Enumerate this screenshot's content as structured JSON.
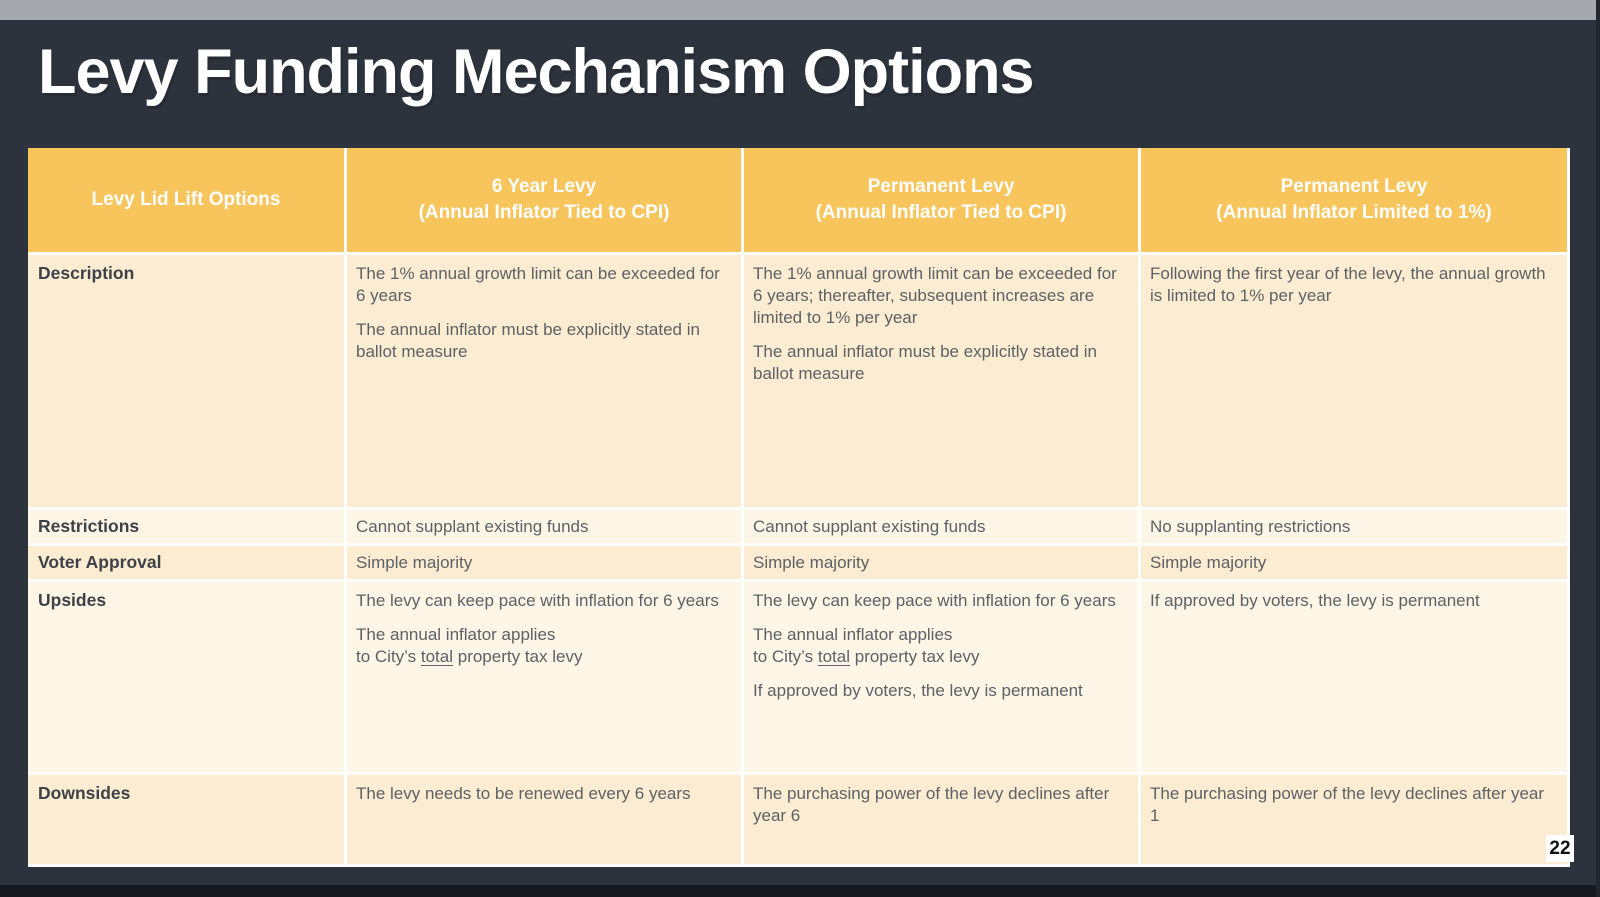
{
  "slide": {
    "title": "Levy Funding Mechanism Options",
    "page_number": "22"
  },
  "colors": {
    "background": "#2d333d",
    "top_chrome_bar": "#a5a8ac",
    "bottom_edge_bar": "#17191e",
    "header_fill": "#f8c45c",
    "row_shade_dark": "#fcecd1",
    "row_shade_light": "#fdf5e5",
    "header_text": "#ffffff",
    "row_label_text": "#3d4248",
    "body_text": "#5d6166",
    "cell_border": "#ffffff"
  },
  "table": {
    "columns": [
      {
        "lines": [
          "Levy Lid Lift Options"
        ]
      },
      {
        "lines": [
          "6 Year Levy",
          "(Annual Inflator Tied to CPI)"
        ]
      },
      {
        "lines": [
          "Permanent Levy",
          "(Annual Inflator Tied to CPI)"
        ]
      },
      {
        "lines": [
          "Permanent Levy",
          "(Annual Inflator Limited to 1%)"
        ]
      }
    ],
    "rows": [
      {
        "label": "Description",
        "shade": "dark",
        "cells": [
          [
            [
              "The 1% annual growth limit can be exceeded for 6 years"
            ],
            [
              "The annual inflator must be explicitly stated in ballot measure"
            ]
          ],
          [
            [
              "The 1% annual growth limit can be exceeded for 6 years; thereafter, subsequent increases are limited to 1% per year"
            ],
            [
              "The annual inflator must be explicitly stated in ballot measure"
            ]
          ],
          [
            [
              "Following the first year of the levy, the annual growth is limited to 1% per year"
            ]
          ]
        ]
      },
      {
        "label": "Restrictions",
        "shade": "light",
        "cells": [
          [
            [
              "Cannot supplant existing funds"
            ]
          ],
          [
            [
              "Cannot supplant existing funds"
            ]
          ],
          [
            [
              "No supplanting restrictions"
            ]
          ]
        ]
      },
      {
        "label": "Voter Approval",
        "shade": "dark",
        "cells": [
          [
            [
              "Simple majority"
            ]
          ],
          [
            [
              "Simple majority"
            ]
          ],
          [
            [
              "Simple majority"
            ]
          ]
        ]
      },
      {
        "label": "Upsides",
        "shade": "light",
        "cells": [
          [
            [
              "The levy can keep pace with inflation for 6 years"
            ],
            [
              "The annual inflator applies\nto City’s ",
              {
                "u": "total"
              },
              " property tax levy"
            ]
          ],
          [
            [
              "The levy can keep pace with inflation for 6 years"
            ],
            [
              "The annual inflator applies\nto City’s ",
              {
                "u": "total"
              },
              " property tax levy"
            ],
            [
              "If approved by voters, the levy is permanent"
            ]
          ],
          [
            [
              "If approved by voters, the levy is permanent"
            ]
          ]
        ]
      },
      {
        "label": "Downsides",
        "shade": "dark",
        "cells": [
          [
            [
              "The levy needs to be renewed every 6 years"
            ]
          ],
          [
            [
              "The purchasing power of the levy declines after year 6"
            ]
          ],
          [
            [
              "The purchasing power of the levy declines after year 1"
            ]
          ]
        ]
      }
    ]
  }
}
